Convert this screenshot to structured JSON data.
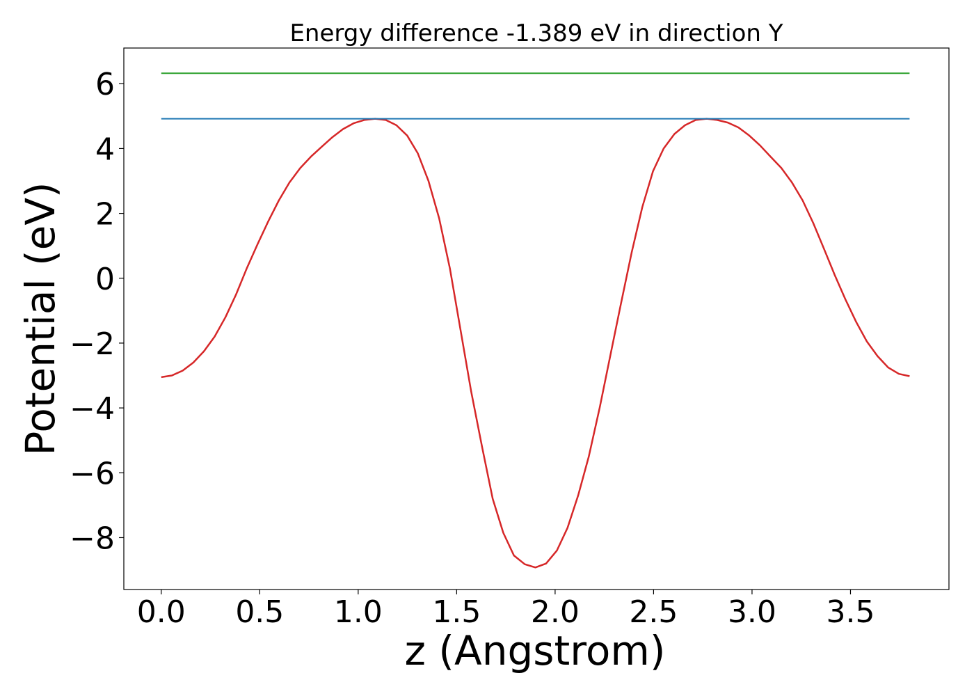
{
  "chart_data": {
    "type": "line",
    "title": "Energy difference -1.389 eV in direction Y",
    "xlabel": "z (Angstrom)",
    "ylabel": "Potential (eV)",
    "xlim": [
      -0.19,
      4.0
    ],
    "ylim": [
      -9.6,
      7.1
    ],
    "grid": false,
    "x_ticks": [
      0.0,
      0.5,
      1.0,
      1.5,
      2.0,
      2.5,
      3.0,
      3.5
    ],
    "x_tick_labels": [
      "0.0",
      "0.5",
      "1.0",
      "1.5",
      "2.0",
      "2.5",
      "3.0",
      "3.5"
    ],
    "y_ticks": [
      -8,
      -6,
      -4,
      -2,
      0,
      2,
      4,
      6
    ],
    "y_tick_labels": [
      "−8",
      "−6",
      "−4",
      "−2",
      "0",
      "2",
      "4",
      "6"
    ],
    "series": [
      {
        "color": "#d62728",
        "x": [
          0.0,
          0.054,
          0.109,
          0.163,
          0.217,
          0.271,
          0.326,
          0.38,
          0.434,
          0.489,
          0.543,
          0.597,
          0.651,
          0.706,
          0.76,
          0.814,
          0.869,
          0.923,
          0.977,
          1.031,
          1.086,
          1.14,
          1.194,
          1.249,
          1.303,
          1.357,
          1.411,
          1.466,
          1.52,
          1.574,
          1.629,
          1.683,
          1.737,
          1.791,
          1.846,
          1.9,
          1.954,
          2.009,
          2.063,
          2.117,
          2.171,
          2.226,
          2.28,
          2.334,
          2.389,
          2.443,
          2.497,
          2.551,
          2.606,
          2.66,
          2.714,
          2.769,
          2.823,
          2.877,
          2.931,
          2.986,
          3.04,
          3.094,
          3.149,
          3.203,
          3.257,
          3.311,
          3.366,
          3.42,
          3.474,
          3.529,
          3.583,
          3.637,
          3.691,
          3.746,
          3.8
        ],
        "y": [
          -3.05,
          -3.0,
          -2.85,
          -2.6,
          -2.25,
          -1.8,
          -1.2,
          -0.5,
          0.3,
          1.05,
          1.75,
          2.4,
          2.95,
          3.4,
          3.75,
          4.05,
          4.35,
          4.6,
          4.78,
          4.88,
          4.92,
          4.88,
          4.72,
          4.4,
          3.85,
          3.0,
          1.85,
          0.3,
          -1.6,
          -3.5,
          -5.2,
          -6.8,
          -7.85,
          -8.55,
          -8.82,
          -8.92,
          -8.8,
          -8.4,
          -7.7,
          -6.7,
          -5.5,
          -4.0,
          -2.4,
          -0.8,
          0.8,
          2.2,
          3.3,
          4.0,
          4.45,
          4.72,
          4.88,
          4.92,
          4.88,
          4.8,
          4.65,
          4.4,
          4.1,
          3.75,
          3.4,
          2.95,
          2.4,
          1.7,
          0.9,
          0.1,
          -0.65,
          -1.35,
          -1.95,
          -2.4,
          -2.75,
          -2.95,
          -3.02
        ]
      },
      {
        "color": "#1f77b4",
        "x": [
          0.0,
          3.8
        ],
        "y": [
          4.92,
          4.92
        ]
      },
      {
        "color": "#2ca02c",
        "x": [
          0.0,
          3.8
        ],
        "y": [
          6.32,
          6.32
        ]
      }
    ]
  }
}
